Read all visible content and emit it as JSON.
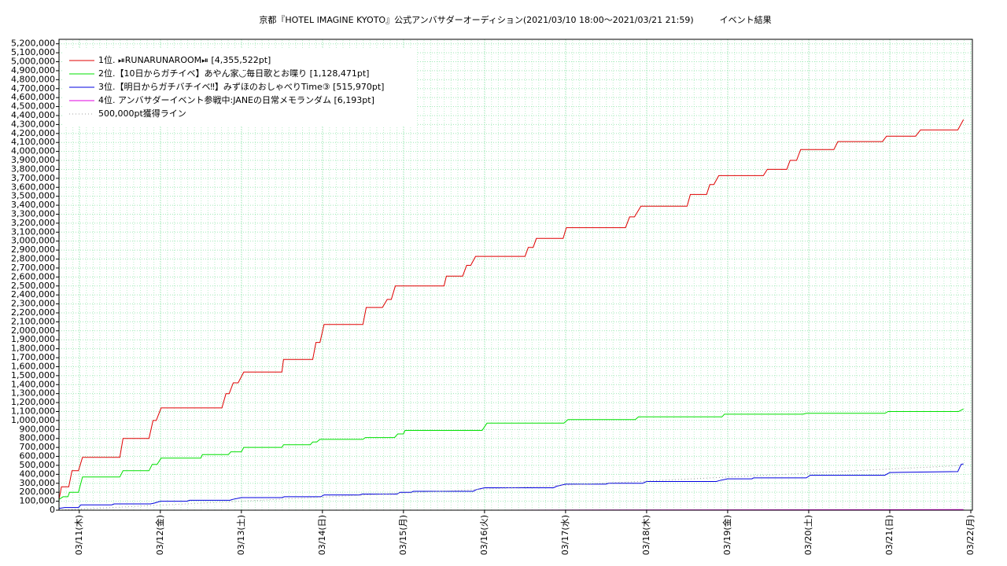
{
  "chart_data": {
    "type": "line",
    "title": "京都『HOTEL IMAGINE KYOTO』公式アンバサダーオーディション(2021/03/10 18:00～2021/03/21 21:59)　　　イベント結果",
    "xlim": [
      10.75,
      22
    ],
    "ylim": [
      0,
      5250000
    ],
    "grid": true,
    "legend": "upper-left",
    "xticks": [
      {
        "value": 11,
        "label": "03/11(木)"
      },
      {
        "value": 12,
        "label": "03/12(金)"
      },
      {
        "value": 13,
        "label": "03/13(土)"
      },
      {
        "value": 14,
        "label": "03/14(日)"
      },
      {
        "value": 15,
        "label": "03/15(月)"
      },
      {
        "value": 16,
        "label": "03/16(火)"
      },
      {
        "value": 17,
        "label": "03/17(水)"
      },
      {
        "value": 18,
        "label": "03/18(木)"
      },
      {
        "value": 19,
        "label": "03/19(金)"
      },
      {
        "value": 20,
        "label": "03/20(土)"
      },
      {
        "value": 21,
        "label": "03/21(日)"
      },
      {
        "value": 22,
        "label": "03/22(月)"
      }
    ],
    "yticks": [
      0,
      {
        "value": 100000,
        "label": "100,000"
      },
      {
        "value": 200000,
        "label": "200,000"
      },
      {
        "value": 300000,
        "label": "300,000"
      },
      {
        "value": 400000,
        "label": "400,000"
      },
      {
        "value": 500000,
        "label": "500,000"
      },
      {
        "value": 600000,
        "label": "600,000"
      },
      {
        "value": 700000,
        "label": "700,000"
      },
      {
        "value": 800000,
        "label": "800,000"
      },
      {
        "value": 900000,
        "label": "900,000"
      },
      {
        "value": 1000000,
        "label": "1,000,000"
      },
      {
        "value": 1100000,
        "label": "1,100,000"
      },
      {
        "value": 1200000,
        "label": "1,200,000"
      },
      {
        "value": 1300000,
        "label": "1,300,000"
      },
      {
        "value": 1400000,
        "label": "1,400,000"
      },
      {
        "value": 1500000,
        "label": "1,500,000"
      },
      {
        "value": 1600000,
        "label": "1,600,000"
      },
      {
        "value": 1700000,
        "label": "1,700,000"
      },
      {
        "value": 1800000,
        "label": "1,800,000"
      },
      {
        "value": 1900000,
        "label": "1,900,000"
      },
      {
        "value": 2000000,
        "label": "2,000,000"
      },
      {
        "value": 2100000,
        "label": "2,100,000"
      },
      {
        "value": 2200000,
        "label": "2,200,000"
      },
      {
        "value": 2300000,
        "label": "2,300,000"
      },
      {
        "value": 2400000,
        "label": "2,400,000"
      },
      {
        "value": 2500000,
        "label": "2,500,000"
      },
      {
        "value": 2600000,
        "label": "2,600,000"
      },
      {
        "value": 2700000,
        "label": "2,700,000"
      },
      {
        "value": 2800000,
        "label": "2,800,000"
      },
      {
        "value": 2900000,
        "label": "2,900,000"
      },
      {
        "value": 3000000,
        "label": "3,000,000"
      },
      {
        "value": 3100000,
        "label": "3,100,000"
      },
      {
        "value": 3200000,
        "label": "3,200,000"
      },
      {
        "value": 3300000,
        "label": "3,300,000"
      },
      {
        "value": 3400000,
        "label": "3,400,000"
      },
      {
        "value": 3500000,
        "label": "3,500,000"
      },
      {
        "value": 3600000,
        "label": "3,600,000"
      },
      {
        "value": 3700000,
        "label": "3,700,000"
      },
      {
        "value": 3800000,
        "label": "3,800,000"
      },
      {
        "value": 3900000,
        "label": "3,900,000"
      },
      {
        "value": 4000000,
        "label": "4,000,000"
      },
      {
        "value": 4100000,
        "label": "4,100,000"
      },
      {
        "value": 4200000,
        "label": "4,200,000"
      },
      {
        "value": 4300000,
        "label": "4,300,000"
      },
      {
        "value": 4400000,
        "label": "4,400,000"
      },
      {
        "value": 4500000,
        "label": "4,500,000"
      },
      {
        "value": 4600000,
        "label": "4,600,000"
      },
      {
        "value": 4700000,
        "label": "4,700,000"
      },
      {
        "value": 4800000,
        "label": "4,800,000"
      },
      {
        "value": 4900000,
        "label": "4,900,000"
      },
      {
        "value": 5000000,
        "label": "5,000,000"
      },
      {
        "value": 5100000,
        "label": "5,100,000"
      },
      {
        "value": 5200000,
        "label": "5,200,000"
      }
    ],
    "series": [
      {
        "name": "1位. ⏯RUNARUNAROOM⏯ [4,355,522pt]",
        "color": "#e00000",
        "x": [
          10.75,
          10.78,
          10.87,
          10.91,
          10.99,
          11.04,
          11.5,
          11.54,
          11.86,
          11.91,
          11.95,
          12.01,
          12.76,
          12.81,
          12.85,
          12.9,
          12.96,
          13.03,
          13.5,
          13.52,
          13.88,
          13.92,
          13.97,
          14.02,
          14.5,
          14.54,
          14.74,
          14.8,
          14.85,
          14.9,
          15.5,
          15.53,
          15.73,
          15.78,
          15.83,
          15.89,
          16.5,
          16.54,
          16.6,
          16.64,
          16.97,
          17.01,
          17.74,
          17.79,
          17.85,
          17.93,
          18.5,
          18.54,
          18.74,
          18.78,
          18.83,
          18.89,
          19.44,
          19.49,
          19.73,
          19.77,
          19.85,
          19.9,
          20.31,
          20.36,
          20.91,
          20.96,
          21.32,
          21.38,
          21.84,
          21.91
        ],
        "values": [
          120000,
          260000,
          260000,
          440000,
          440000,
          590000,
          590000,
          800000,
          800000,
          1000000,
          1000000,
          1140000,
          1140000,
          1300000,
          1300000,
          1420000,
          1420000,
          1540000,
          1540000,
          1680000,
          1680000,
          1870000,
          1870000,
          2070000,
          2070000,
          2260000,
          2260000,
          2350000,
          2350000,
          2500000,
          2500000,
          2610000,
          2610000,
          2730000,
          2730000,
          2830000,
          2830000,
          2930000,
          2930000,
          3030000,
          3030000,
          3150000,
          3150000,
          3270000,
          3270000,
          3390000,
          3390000,
          3520000,
          3520000,
          3630000,
          3630000,
          3730000,
          3730000,
          3800000,
          3800000,
          3900000,
          3900000,
          4020000,
          4020000,
          4110000,
          4110000,
          4170000,
          4170000,
          4240000,
          4240000,
          4355522
        ]
      },
      {
        "name": "2位.【10日からガチイベ】あやん家◡̈毎日歌とお喋り [1,128,471pt]",
        "color": "#00e000",
        "x": [
          10.75,
          10.8,
          10.86,
          10.88,
          10.99,
          11.04,
          11.5,
          11.54,
          11.86,
          11.9,
          11.96,
          12.01,
          12.5,
          12.52,
          12.84,
          12.87,
          13.0,
          13.03,
          13.5,
          13.52,
          13.85,
          13.88,
          13.93,
          13.97,
          14.5,
          14.53,
          14.89,
          14.93,
          15.0,
          15.02,
          15.97,
          16.03,
          16.98,
          17.03,
          17.86,
          17.9,
          18.93,
          18.96,
          19.93,
          19.97,
          20.94,
          20.98,
          21.85,
          21.91
        ],
        "values": [
          120000,
          150000,
          150000,
          200000,
          200000,
          370000,
          370000,
          440000,
          440000,
          510000,
          510000,
          580000,
          580000,
          620000,
          620000,
          650000,
          650000,
          700000,
          700000,
          730000,
          730000,
          760000,
          760000,
          790000,
          790000,
          810000,
          810000,
          850000,
          850000,
          890000,
          890000,
          970000,
          970000,
          1010000,
          1010000,
          1040000,
          1040000,
          1070000,
          1070000,
          1080000,
          1080000,
          1100000,
          1100000,
          1128471
        ]
      },
      {
        "name": "3位.【明日からガチバチイベ‼︎】みずほのおしゃべりTime③ [515,970pt]",
        "color": "#0000e0",
        "x": [
          10.75,
          10.82,
          10.99,
          11.02,
          11.4,
          11.43,
          11.88,
          11.93,
          12.0,
          12.33,
          12.36,
          12.86,
          12.89,
          13.0,
          13.5,
          13.53,
          13.98,
          14.02,
          14.46,
          14.49,
          14.92,
          14.96,
          15.1,
          15.12,
          15.86,
          15.9,
          16.0,
          16.85,
          16.9,
          17.0,
          17.5,
          17.53,
          17.95,
          18.0,
          18.86,
          18.9,
          19.0,
          19.3,
          19.32,
          19.97,
          20.02,
          20.94,
          21.0,
          21.84,
          21.88,
          21.91
        ],
        "values": [
          20000,
          30000,
          30000,
          60000,
          60000,
          70000,
          70000,
          80000,
          100000,
          100000,
          110000,
          110000,
          120000,
          140000,
          140000,
          150000,
          150000,
          170000,
          170000,
          180000,
          180000,
          200000,
          200000,
          210000,
          210000,
          230000,
          250000,
          250000,
          270000,
          290000,
          290000,
          300000,
          300000,
          320000,
          320000,
          330000,
          350000,
          350000,
          360000,
          360000,
          390000,
          390000,
          420000,
          430000,
          510000,
          515970
        ]
      },
      {
        "name": "4位. アンバサダーイベント参戦中:JANEの日常メモランダム [6,193pt]",
        "color": "#e000e0",
        "x": [
          15.75,
          21.91
        ],
        "values": [
          0,
          6193
        ]
      },
      {
        "name": "500,000pt獲得ライン",
        "color": "#a0a0a0",
        "dash": true,
        "x": [
          10.75,
          21.91
        ],
        "values": [
          0,
          500000
        ]
      }
    ]
  }
}
